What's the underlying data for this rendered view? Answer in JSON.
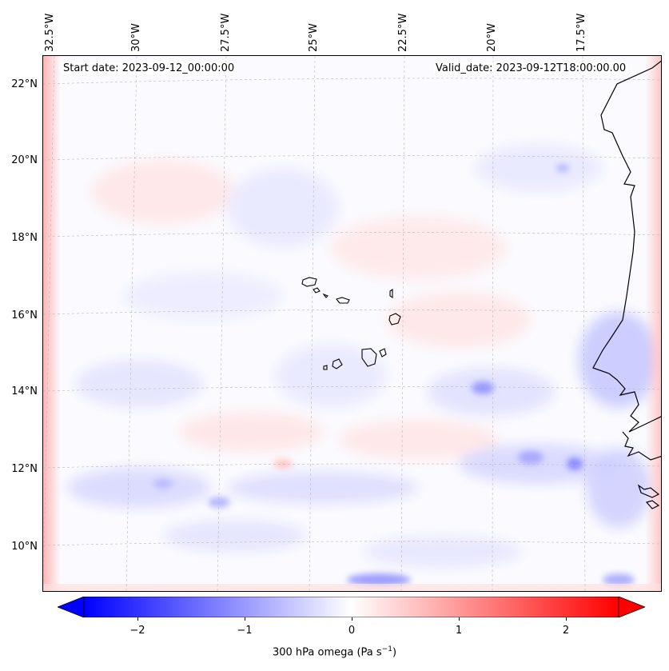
{
  "map": {
    "start_date": "Start date: 2023-09-12_00:00:00",
    "valid_date": "Valid_date: 2023-09-12T18:00:00.00",
    "longitude_labels": [
      "32.5°W",
      "30°W",
      "27.5°W",
      "25°W",
      "22.5°W",
      "20°W",
      "17.5°W"
    ],
    "latitude_labels": [
      "22°N",
      "20°N",
      "18°N",
      "16°N",
      "14°N",
      "12°N",
      "10°N"
    ],
    "field": "300 hPa omega",
    "colormap": "bwr",
    "colors": {
      "negative": "#0000ff",
      "zero": "#ffffff",
      "positive": "#ff0000",
      "coastline": "#000000"
    }
  },
  "colorbar": {
    "ticks": [
      "−2",
      "−1",
      "0",
      "1",
      "2"
    ],
    "tick_values": [
      -2,
      -1,
      0,
      1,
      2
    ],
    "range": [
      -2.5,
      2.5
    ],
    "label_main": "300 hPa omega (Pa s",
    "label_exp": "−1",
    "label_end": ")"
  }
}
